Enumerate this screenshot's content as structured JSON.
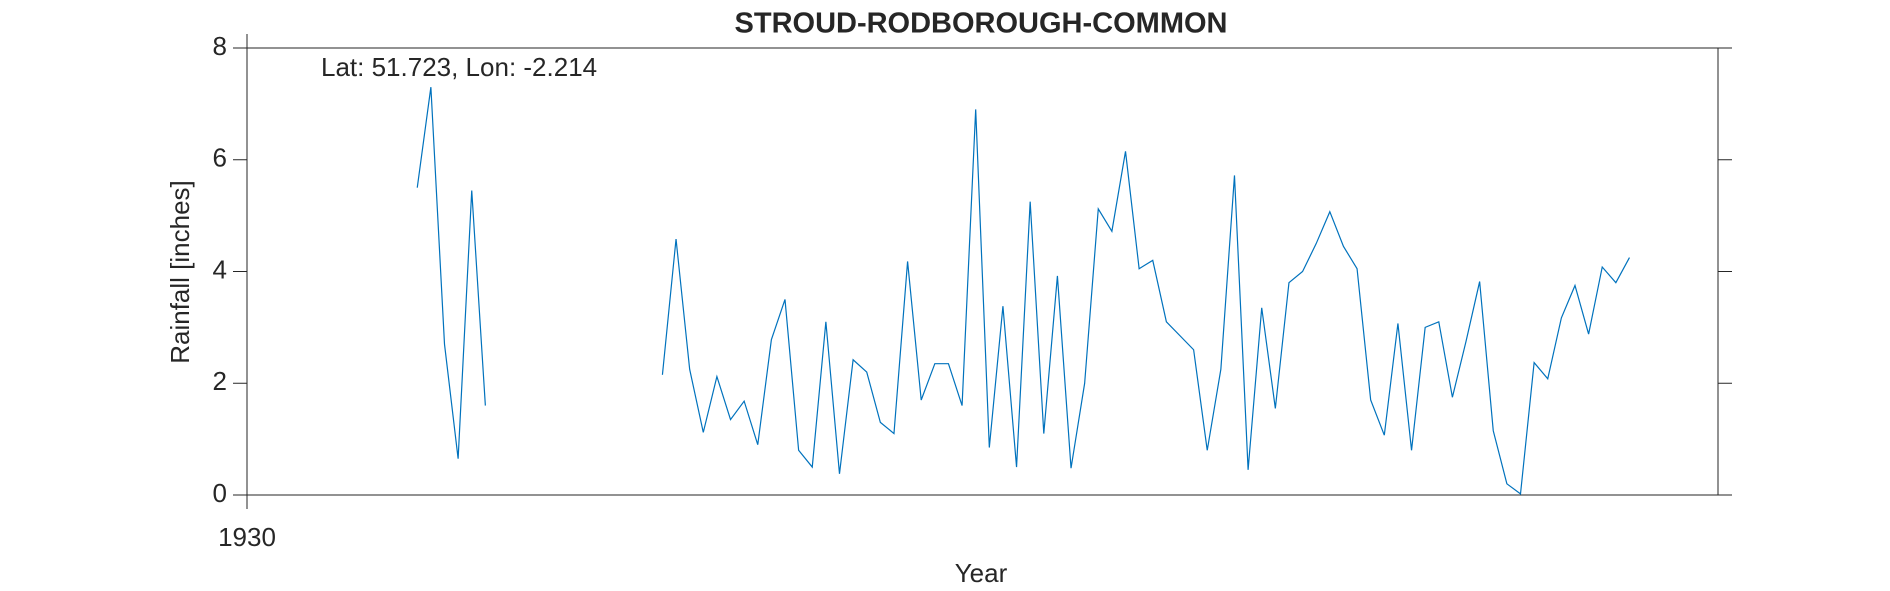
{
  "chart_data": {
    "type": "line",
    "title": "STROUD-RODBOROUGH-COMMON",
    "annotation": "Lat: 51.723, Lon: -2.214",
    "x_label": "Year",
    "y_label": "Rainfall [inches]",
    "x": [
      12.5,
      13.5,
      14.5,
      15.5,
      16.5,
      17.5,
      18.5,
      19.5,
      20.5,
      21.5,
      22.5,
      23.5,
      24.5,
      25.5,
      26.5,
      27.5,
      28.5,
      29.5,
      30.5,
      31.5,
      32.5,
      33.5,
      34.5,
      35.5,
      36.5,
      37.5,
      38.5,
      39.5,
      40.5,
      41.5,
      42.5,
      43.5,
      44.5,
      45.5,
      46.5,
      47.5,
      48.5,
      49.5,
      50.5,
      51.5,
      52.5,
      53.5,
      54.5,
      55.5,
      56.5,
      57.5,
      58.5,
      59.5,
      60.5,
      61.5,
      62.5,
      63.5,
      64.5,
      65.5,
      66.5,
      67.5,
      68.5,
      69.5,
      70.5,
      71.5,
      72.5,
      73.5,
      74.5,
      75.5,
      76.5,
      77.5,
      78.5,
      79.5,
      80.5,
      81.5,
      82.5,
      83.5,
      84.5,
      85.5,
      86.5,
      87.5,
      88.5,
      89.5,
      90.5,
      91.5,
      92.5,
      93.5,
      94.5,
      95.5,
      96.5,
      97.5,
      98.5,
      99.5,
      100.5,
      101.5
    ],
    "series": [
      {
        "name": "Rainfall",
        "color": "#0072bd",
        "values": [
          5.5,
          7.3,
          2.7,
          0.65,
          5.45,
          1.6,
          null,
          null,
          null,
          null,
          null,
          null,
          null,
          null,
          null,
          null,
          null,
          null,
          2.15,
          4.58,
          2.25,
          1.12,
          2.12,
          1.35,
          1.68,
          0.9,
          2.78,
          3.5,
          0.8,
          0.5,
          3.1,
          0.38,
          2.42,
          2.2,
          1.3,
          1.1,
          4.18,
          1.7,
          2.35,
          2.35,
          1.6,
          6.9,
          0.85,
          3.38,
          0.5,
          5.25,
          1.1,
          3.92,
          0.48,
          2.0,
          5.12,
          4.72,
          6.15,
          4.05,
          4.2,
          3.1,
          2.85,
          2.6,
          0.8,
          2.25,
          5.72,
          0.45,
          3.35,
          1.55,
          3.8,
          4.0,
          4.5,
          5.07,
          4.45,
          4.05,
          1.7,
          1.07,
          3.07,
          0.8,
          3.0,
          3.1,
          1.75,
          2.75,
          3.82,
          1.15,
          0.2,
          0.02,
          2.37,
          2.08,
          3.17,
          3.75,
          2.88,
          4.08,
          3.8,
          4.25
        ]
      }
    ],
    "xlim": [
      0,
      108
    ],
    "xticks": [
      {
        "value": 0,
        "label": "1930"
      }
    ],
    "ylim": [
      0,
      8
    ],
    "yticks": [
      0,
      2,
      4,
      6,
      8
    ],
    "grid": false
  }
}
